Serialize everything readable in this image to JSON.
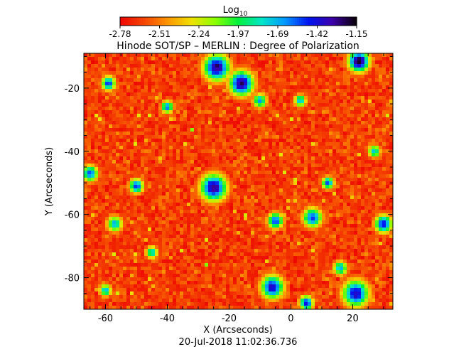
{
  "chart_data": {
    "type": "heatmap",
    "title": "Hinode SOT/SP – MERLIN : Degree of Polarization",
    "xlabel": "X (Arcseconds)",
    "ylabel": "Y (Arcseconds)",
    "timestamp": "20-Jul-2018 11:02:36.736",
    "colorbar": {
      "title": "Log",
      "title_subscript": "10",
      "ticks": [
        "-2.78",
        "-2.51",
        "-2.24",
        "-1.97",
        "-1.69",
        "-1.42",
        "-1.15"
      ],
      "range": [
        -2.78,
        -1.15
      ]
    },
    "xlim": [
      -67,
      33
    ],
    "ylim": [
      -90,
      -9
    ],
    "x_ticks": [
      -60,
      -40,
      -20,
      0,
      20
    ],
    "y_ticks": [
      -20,
      -40,
      -60,
      -80
    ],
    "grid": false,
    "blobs": [
      {
        "x": -24,
        "y": -13.5,
        "r": 3.0,
        "v": -1.3
      },
      {
        "x": -16,
        "y": -18.5,
        "r": 2.8,
        "v": -1.28
      },
      {
        "x": 22,
        "y": -11.5,
        "r": 2.4,
        "v": -1.2
      },
      {
        "x": -25,
        "y": -51.5,
        "r": 3.0,
        "v": -1.3
      },
      {
        "x": -50,
        "y": -51.0,
        "r": 1.6,
        "v": -1.5
      },
      {
        "x": -65,
        "y": -47.0,
        "r": 1.8,
        "v": -1.55
      },
      {
        "x": 7,
        "y": -61.0,
        "r": 2.2,
        "v": -1.55
      },
      {
        "x": -6,
        "y": -83.0,
        "r": 2.6,
        "v": -1.4
      },
      {
        "x": 21,
        "y": -85.0,
        "r": 3.0,
        "v": -1.4
      },
      {
        "x": 5,
        "y": -88.0,
        "r": 1.6,
        "v": -1.45
      },
      {
        "x": 30,
        "y": -63.0,
        "r": 2.0,
        "v": -1.45
      },
      {
        "x": -5,
        "y": -62.0,
        "r": 1.8,
        "v": -1.55
      },
      {
        "x": -59,
        "y": -18.5,
        "r": 1.6,
        "v": -1.55
      },
      {
        "x": 12,
        "y": -50.0,
        "r": 1.4,
        "v": -1.6
      },
      {
        "x": -40,
        "y": -26.0,
        "r": 1.4,
        "v": -1.65
      },
      {
        "x": -57,
        "y": -63.0,
        "r": 1.8,
        "v": -1.75
      },
      {
        "x": 16,
        "y": -77.0,
        "r": 1.6,
        "v": -1.7
      },
      {
        "x": -10,
        "y": -24.0,
        "r": 1.6,
        "v": -1.7
      },
      {
        "x": 27,
        "y": -40.0,
        "r": 1.4,
        "v": -1.75
      },
      {
        "x": -60,
        "y": -84.0,
        "r": 1.4,
        "v": -1.75
      },
      {
        "x": -45,
        "y": -72.0,
        "r": 1.4,
        "v": -1.8
      },
      {
        "x": 3,
        "y": -24.0,
        "r": 1.4,
        "v": -1.75
      }
    ]
  }
}
